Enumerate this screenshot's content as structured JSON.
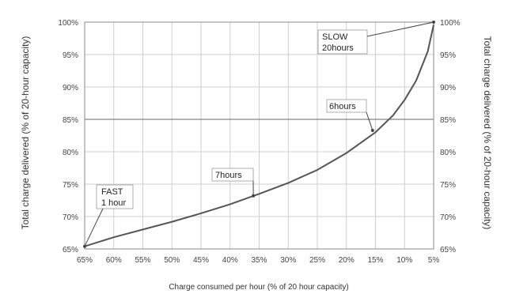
{
  "chart_data": {
    "type": "line",
    "title": "",
    "xlabel": "Charge consumed per hour (% of 20 hour capacity)",
    "ylabel_left": "Total charge delivered (% of 20-hour capacity)",
    "ylabel_right": "Total charge delivered (% of 20-hour capacity)",
    "x_ticks": [
      "65%",
      "60%",
      "55%",
      "50%",
      "45%",
      "40%",
      "35%",
      "30%",
      "25%",
      "20%",
      "15%",
      "10%",
      "5%"
    ],
    "x_tick_values": [
      65,
      60,
      55,
      50,
      45,
      40,
      35,
      30,
      25,
      20,
      15,
      10,
      5
    ],
    "y_ticks": [
      "65%",
      "70%",
      "75%",
      "80%",
      "85%",
      "90%",
      "95%",
      "100%"
    ],
    "y_tick_values": [
      65,
      70,
      75,
      80,
      85,
      90,
      95,
      100
    ],
    "xlim": [
      65,
      5
    ],
    "ylim": [
      65,
      100
    ],
    "grid": true,
    "series": [
      {
        "x": [
          65,
          60,
          55,
          50,
          45,
          40,
          35,
          30,
          25,
          20,
          15,
          12,
          10,
          8,
          6,
          5
        ],
        "y": [
          65.4,
          66.8,
          68.0,
          69.2,
          70.5,
          71.9,
          73.5,
          75.2,
          77.2,
          79.8,
          83.0,
          85.6,
          88.0,
          91.0,
          95.5,
          99.6
        ]
      }
    ],
    "annotations": [
      {
        "lines": [
          "FAST",
          "1 hour"
        ],
        "x": 65,
        "y": 65.4
      },
      {
        "lines": [
          "7hours"
        ],
        "x": 36,
        "y": 73.2
      },
      {
        "lines": [
          "6hours"
        ],
        "x": 15.5,
        "y": 83.3
      },
      {
        "lines": [
          "SLOW",
          "20hours"
        ],
        "x": 5,
        "y": 100
      }
    ]
  }
}
